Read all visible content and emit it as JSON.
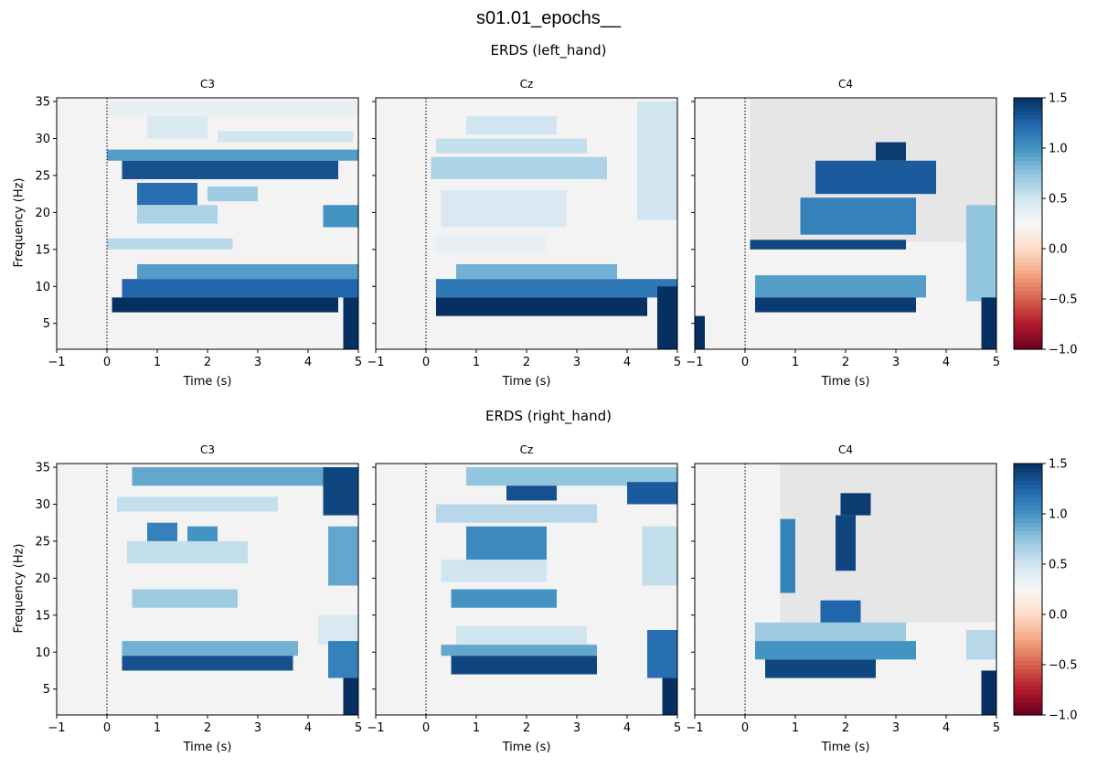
{
  "figure": {
    "suptitle": "s01.01_epochs__"
  },
  "chart_data": [
    {
      "type": "heatmap",
      "title": "ERDS (left_hand)",
      "ylabel": "Frequency (Hz)",
      "colorbar": {
        "colormap": "RdBu",
        "range": [
          -1.0,
          1.5
        ],
        "ticks": [
          "1.5",
          "1.0",
          "0.5",
          "0.0",
          "−0.5",
          "−1.0"
        ]
      },
      "panels": [
        {
          "title": "C3",
          "xlabel": "Time (s)",
          "x_ticks": [
            "−1",
            "0",
            "1",
            "2",
            "3",
            "4",
            "5"
          ],
          "xlim": [
            -1,
            5
          ],
          "y_ticks": [
            "5",
            "10",
            "15",
            "20",
            "25",
            "30",
            "35"
          ],
          "ylim": [
            1.5,
            35.5
          ],
          "event_line_at": 0,
          "bands": [
            {
              "t0": 0.0,
              "t1": 5.0,
              "f0": 33,
              "f1": 35,
              "v": 0.35
            },
            {
              "t0": 0.8,
              "t1": 2.0,
              "f0": 30,
              "f1": 33,
              "v": 0.45
            },
            {
              "t0": 2.2,
              "t1": 4.9,
              "f0": 29.5,
              "f1": 31,
              "v": 0.5
            },
            {
              "t0": 0.0,
              "t1": 5.0,
              "f0": 27,
              "f1": 28.5,
              "v": 0.95
            },
            {
              "t0": 0.3,
              "t1": 4.6,
              "f0": 24.5,
              "f1": 27,
              "v": 1.35
            },
            {
              "t0": 0.6,
              "t1": 1.8,
              "f0": 21,
              "f1": 24,
              "v": 1.2
            },
            {
              "t0": 2.0,
              "t1": 3.0,
              "f0": 21.5,
              "f1": 23.5,
              "v": 0.7
            },
            {
              "t0": 0.6,
              "t1": 2.2,
              "f0": 18.5,
              "f1": 21,
              "v": 0.65
            },
            {
              "t0": 4.3,
              "t1": 5.0,
              "f0": 18,
              "f1": 21,
              "v": 1.0
            },
            {
              "t0": 0.0,
              "t1": 2.5,
              "f0": 15,
              "f1": 16.5,
              "v": 0.6
            },
            {
              "t0": 0.6,
              "t1": 5.0,
              "f0": 11,
              "f1": 13,
              "v": 0.95
            },
            {
              "t0": 0.3,
              "t1": 5.0,
              "f0": 8.5,
              "f1": 11,
              "v": 1.25
            },
            {
              "t0": 0.1,
              "t1": 4.6,
              "f0": 6.5,
              "f1": 8.5,
              "v": 1.5
            },
            {
              "t0": 4.7,
              "t1": 5.0,
              "f0": 1.5,
              "f1": 8.5,
              "v": 1.5
            }
          ]
        },
        {
          "title": "Cz",
          "xlabel": "Time (s)",
          "x_ticks": [
            "−1",
            "0",
            "1",
            "2",
            "3",
            "4",
            "5"
          ],
          "xlim": [
            -1,
            5
          ],
          "y_ticks": [
            "5",
            "10",
            "15",
            "20",
            "25",
            "30",
            "35"
          ],
          "ylim": [
            1.5,
            35.5
          ],
          "event_line_at": 0,
          "bands": [
            {
              "t0": 0.8,
              "t1": 2.6,
              "f0": 30.5,
              "f1": 33,
              "v": 0.5
            },
            {
              "t0": 0.2,
              "t1": 3.2,
              "f0": 28,
              "f1": 30,
              "v": 0.55
            },
            {
              "t0": 0.1,
              "t1": 3.6,
              "f0": 24.5,
              "f1": 27.5,
              "v": 0.65
            },
            {
              "t0": 4.2,
              "t1": 5.0,
              "f0": 19,
              "f1": 35,
              "v": 0.5
            },
            {
              "t0": 0.3,
              "t1": 2.8,
              "f0": 18,
              "f1": 23,
              "v": 0.45
            },
            {
              "t0": 0.2,
              "t1": 2.4,
              "f0": 14.5,
              "f1": 17,
              "v": 0.35
            },
            {
              "t0": 0.6,
              "t1": 3.8,
              "f0": 11,
              "f1": 13,
              "v": 0.85
            },
            {
              "t0": 0.2,
              "t1": 5.0,
              "f0": 8.5,
              "f1": 11,
              "v": 1.15
            },
            {
              "t0": 0.2,
              "t1": 4.4,
              "f0": 6.0,
              "f1": 8.5,
              "v": 1.5
            },
            {
              "t0": 4.6,
              "t1": 5.0,
              "f0": 1.5,
              "f1": 10,
              "v": 1.5
            }
          ]
        },
        {
          "title": "C4",
          "xlabel": "Time (s)",
          "x_ticks": [
            "−1",
            "0",
            "1",
            "2",
            "3",
            "4",
            "5"
          ],
          "xlim": [
            -1,
            5
          ],
          "y_ticks": [
            "5",
            "10",
            "15",
            "20",
            "25",
            "30",
            "35"
          ],
          "ylim": [
            1.5,
            35.5
          ],
          "event_line_at": 0,
          "masked_region": {
            "t0": 0.1,
            "t1": 5.0,
            "f0": 16,
            "f1": 35.5
          },
          "bands": [
            {
              "t0": 1.4,
              "t1": 3.8,
              "f0": 22.5,
              "f1": 27,
              "v": 1.3
            },
            {
              "t0": 2.6,
              "t1": 3.2,
              "f0": 27,
              "f1": 29.5,
              "v": 1.45
            },
            {
              "t0": 1.1,
              "t1": 3.4,
              "f0": 17,
              "f1": 22,
              "v": 1.1
            },
            {
              "t0": 0.1,
              "t1": 3.2,
              "f0": 15,
              "f1": 16.3,
              "v": 1.4
            },
            {
              "t0": 4.4,
              "t1": 5.0,
              "f0": 8,
              "f1": 21,
              "v": 0.75
            },
            {
              "t0": 0.2,
              "t1": 3.6,
              "f0": 8.5,
              "f1": 11.5,
              "v": 0.95
            },
            {
              "t0": 0.2,
              "t1": 3.4,
              "f0": 6.5,
              "f1": 8.5,
              "v": 1.45
            },
            {
              "t0": 4.7,
              "t1": 5.0,
              "f0": 1.5,
              "f1": 8.5,
              "v": 1.5
            },
            {
              "t0": -1.0,
              "t1": -0.8,
              "f0": 1.5,
              "f1": 6,
              "v": 1.5
            }
          ]
        }
      ]
    },
    {
      "type": "heatmap",
      "title": "ERDS (right_hand)",
      "ylabel": "Frequency (Hz)",
      "colorbar": {
        "colormap": "RdBu",
        "range": [
          -1.0,
          1.5
        ],
        "ticks": [
          "1.5",
          "1.0",
          "0.5",
          "0.0",
          "−0.5",
          "−1.0"
        ]
      },
      "panels": [
        {
          "title": "C3",
          "xlabel": "Time (s)",
          "x_ticks": [
            "−1",
            "0",
            "1",
            "2",
            "3",
            "4",
            "5"
          ],
          "xlim": [
            -1,
            5
          ],
          "y_ticks": [
            "5",
            "10",
            "15",
            "20",
            "25",
            "30",
            "35"
          ],
          "ylim": [
            1.5,
            35.5
          ],
          "event_line_at": 0,
          "bands": [
            {
              "t0": 0.5,
              "t1": 5.0,
              "f0": 32.5,
              "f1": 35,
              "v": 0.9
            },
            {
              "t0": 4.3,
              "t1": 5.0,
              "f0": 28.5,
              "f1": 35,
              "v": 1.4
            },
            {
              "t0": 0.2,
              "t1": 3.4,
              "f0": 29,
              "f1": 31,
              "v": 0.55
            },
            {
              "t0": 0.8,
              "t1": 1.4,
              "f0": 25,
              "f1": 27.5,
              "v": 1.1
            },
            {
              "t0": 1.6,
              "t1": 2.2,
              "f0": 24,
              "f1": 27,
              "v": 1.0
            },
            {
              "t0": 0.4,
              "t1": 2.8,
              "f0": 22,
              "f1": 25,
              "v": 0.55
            },
            {
              "t0": 4.4,
              "t1": 5.0,
              "f0": 19,
              "f1": 27,
              "v": 0.9
            },
            {
              "t0": 0.5,
              "t1": 2.6,
              "f0": 16,
              "f1": 18.5,
              "v": 0.7
            },
            {
              "t0": 4.2,
              "t1": 5.0,
              "f0": 11,
              "f1": 15,
              "v": 0.45
            },
            {
              "t0": 0.3,
              "t1": 3.8,
              "f0": 9.5,
              "f1": 11.5,
              "v": 0.85
            },
            {
              "t0": 0.3,
              "t1": 3.7,
              "f0": 7.5,
              "f1": 9.5,
              "v": 1.35
            },
            {
              "t0": 4.4,
              "t1": 5.0,
              "f0": 6.5,
              "f1": 11.5,
              "v": 1.1
            },
            {
              "t0": 4.7,
              "t1": 5.0,
              "f0": 1.5,
              "f1": 6.5,
              "v": 1.5
            }
          ]
        },
        {
          "title": "Cz",
          "xlabel": "Time (s)",
          "x_ticks": [
            "−1",
            "0",
            "1",
            "2",
            "3",
            "4",
            "5"
          ],
          "xlim": [
            -1,
            5
          ],
          "y_ticks": [
            "5",
            "10",
            "15",
            "20",
            "25",
            "30",
            "35"
          ],
          "ylim": [
            1.5,
            35.5
          ],
          "event_line_at": 0,
          "bands": [
            {
              "t0": 0.8,
              "t1": 5.0,
              "f0": 32.5,
              "f1": 35,
              "v": 0.75
            },
            {
              "t0": 1.6,
              "t1": 2.6,
              "f0": 30.5,
              "f1": 32.5,
              "v": 1.35
            },
            {
              "t0": 4.0,
              "t1": 5.0,
              "f0": 30,
              "f1": 33,
              "v": 1.3
            },
            {
              "t0": 0.2,
              "t1": 3.4,
              "f0": 27.5,
              "f1": 30,
              "v": 0.6
            },
            {
              "t0": 0.8,
              "t1": 2.4,
              "f0": 22.5,
              "f1": 27,
              "v": 1.05
            },
            {
              "t0": 4.3,
              "t1": 5.0,
              "f0": 19,
              "f1": 27,
              "v": 0.55
            },
            {
              "t0": 0.3,
              "t1": 2.4,
              "f0": 19.5,
              "f1": 22.5,
              "v": 0.5
            },
            {
              "t0": 0.5,
              "t1": 2.6,
              "f0": 16,
              "f1": 18.5,
              "v": 1.0
            },
            {
              "t0": 0.6,
              "t1": 3.2,
              "f0": 11,
              "f1": 13.5,
              "v": 0.5
            },
            {
              "t0": 0.3,
              "t1": 3.4,
              "f0": 9.5,
              "f1": 11,
              "v": 0.9
            },
            {
              "t0": 0.5,
              "t1": 3.4,
              "f0": 7.0,
              "f1": 9.5,
              "v": 1.4
            },
            {
              "t0": 4.4,
              "t1": 5.0,
              "f0": 6.5,
              "f1": 13,
              "v": 1.2
            },
            {
              "t0": 4.7,
              "t1": 5.0,
              "f0": 1.5,
              "f1": 6.5,
              "v": 1.5
            }
          ]
        },
        {
          "title": "C4",
          "xlabel": "Time (s)",
          "x_ticks": [
            "−1",
            "0",
            "1",
            "2",
            "3",
            "4",
            "5"
          ],
          "xlim": [
            -1,
            5
          ],
          "y_ticks": [
            "5",
            "10",
            "15",
            "20",
            "25",
            "30",
            "35"
          ],
          "ylim": [
            1.5,
            35.5
          ],
          "event_line_at": 0,
          "masked_region": {
            "t0": 0.7,
            "t1": 5.0,
            "f0": 14,
            "f1": 35.5
          },
          "bands": [
            {
              "t0": 1.9,
              "t1": 2.5,
              "f0": 28.5,
              "f1": 31.5,
              "v": 1.45
            },
            {
              "t0": 1.8,
              "t1": 2.2,
              "f0": 21,
              "f1": 28.5,
              "v": 1.4
            },
            {
              "t0": 0.7,
              "t1": 1.0,
              "f0": 18,
              "f1": 28,
              "v": 1.1
            },
            {
              "t0": 1.5,
              "t1": 2.3,
              "f0": 14,
              "f1": 17,
              "v": 1.25
            },
            {
              "t0": 0.2,
              "t1": 3.2,
              "f0": 11.5,
              "f1": 14,
              "v": 0.7
            },
            {
              "t0": 0.2,
              "t1": 3.4,
              "f0": 9.0,
              "f1": 11.5,
              "v": 1.0
            },
            {
              "t0": 0.4,
              "t1": 2.6,
              "f0": 6.5,
              "f1": 9,
              "v": 1.4
            },
            {
              "t0": 4.4,
              "t1": 5.0,
              "f0": 9,
              "f1": 13,
              "v": 0.6
            },
            {
              "t0": 4.7,
              "t1": 5.0,
              "f0": 1.5,
              "f1": 7.5,
              "v": 1.5
            }
          ]
        }
      ]
    }
  ]
}
